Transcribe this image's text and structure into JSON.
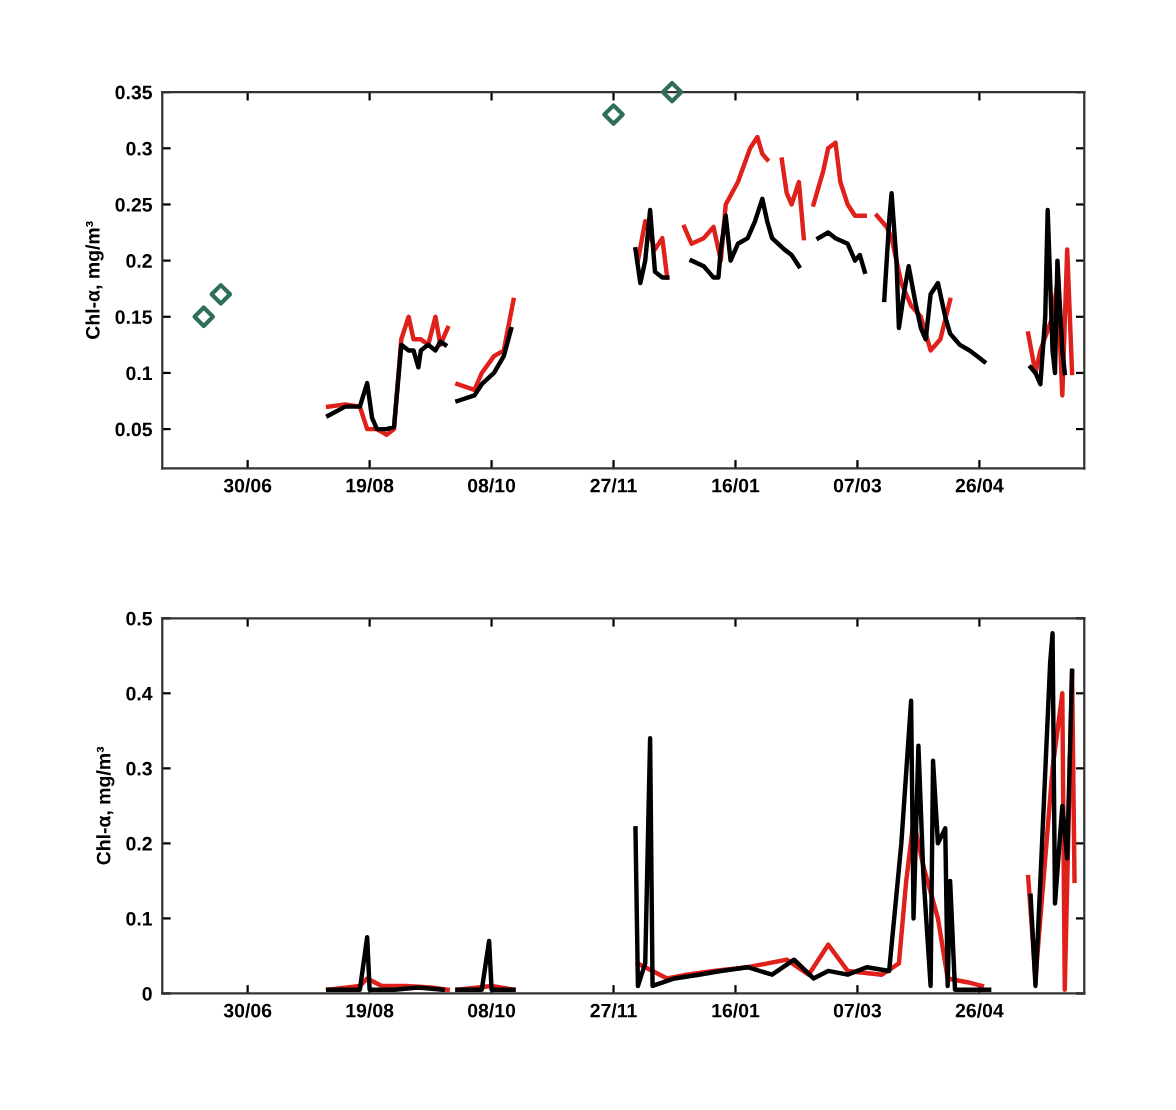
{
  "chart_data": [
    {
      "type": "line",
      "ylabel": "Chl-α, mg/m³",
      "xlim": [
        "2001-05-26",
        "2002-06-08"
      ],
      "ylim": [
        0.015,
        0.35
      ],
      "xticks": [
        {
          "value": "2001-06-30",
          "label": "30/06"
        },
        {
          "value": "2001-08-19",
          "label": "19/08"
        },
        {
          "value": "2001-10-08",
          "label": "08/10"
        },
        {
          "value": "2001-11-27",
          "label": "27/11"
        },
        {
          "value": "2002-01-16",
          "label": "16/01"
        },
        {
          "value": "2002-03-07",
          "label": "07/03"
        },
        {
          "value": "2002-04-26",
          "label": "26/04"
        }
      ],
      "yticks": [
        0.05,
        0.1,
        0.15,
        0.2,
        0.25,
        0.3,
        0.35
      ],
      "series": [
        {
          "color": "#e0201b",
          "x": [
            "2001-08-02",
            "2001-08-09",
            "2001-08-15",
            "2001-08-18",
            "2001-08-22",
            "2001-08-26",
            "2001-08-29",
            "2001-09-01",
            "2001-09-04",
            "2001-09-06",
            "2001-09-09",
            "2001-09-12",
            "2001-09-15",
            "2001-09-17",
            "2001-09-20",
            "2001-09-22",
            "2001-09-24",
            "2001-10-01",
            "2001-10-04",
            "2001-10-09",
            "2001-10-13",
            "2001-10-17",
            "2001-11-07",
            "2001-12-07",
            "2001-12-10",
            "2001-12-14",
            "2001-12-17",
            "2001-12-19",
            "2001-12-23",
            "2001-12-26",
            "2001-12-29",
            "2002-01-03",
            "2002-01-07",
            "2002-01-10",
            "2002-01-12",
            "2002-01-17",
            "2002-01-22",
            "2002-01-25",
            "2002-01-27",
            "2002-01-29",
            "2002-02-01",
            "2002-02-04",
            "2002-02-06",
            "2002-02-08",
            "2002-02-11",
            "2002-02-13",
            "2002-02-15",
            "2002-02-17",
            "2002-02-21",
            "2002-02-23",
            "2002-02-26",
            "2002-02-28",
            "2002-03-03",
            "2002-03-06",
            "2002-03-10",
            "2002-03-13",
            "2002-03-15",
            "2002-03-19",
            "2002-03-21",
            "2002-03-25",
            "2002-03-29",
            "2002-04-02",
            "2002-04-06",
            "2002-04-10",
            "2002-04-14",
            "2002-04-16",
            "2002-05-16",
            "2002-05-19",
            "2002-05-21",
            "2002-05-26",
            "2002-05-28",
            "2002-05-30",
            "2002-06-01",
            "2002-06-03"
          ],
          "values": [
            0.07,
            0.072,
            0.07,
            0.05,
            0.05,
            0.045,
            0.05,
            0.13,
            0.15,
            0.13,
            0.13,
            0.125,
            0.15,
            0.125,
            0.14,
            null,
            0.09,
            0.085,
            0.1,
            0.115,
            0.12,
            0.165,
            null,
            0.2,
            0.235,
            0.21,
            0.22,
            0.185,
            null,
            0.23,
            0.215,
            0.22,
            0.23,
            0.2,
            0.25,
            0.27,
            0.3,
            0.31,
            0.295,
            0.29,
            null,
            0.29,
            0.26,
            0.25,
            0.27,
            0.22,
            null,
            0.25,
            0.28,
            0.3,
            0.305,
            0.27,
            0.25,
            0.24,
            0.24,
            null,
            0.24,
            0.23,
            0.22,
            0.18,
            0.16,
            0.15,
            0.12,
            0.13,
            0.165,
            null,
            0.135,
            0.1,
            0.12,
            0.15,
            0.18,
            0.08,
            0.21,
            0.1
          ]
        },
        {
          "color": "#000000",
          "x": [
            "2001-08-02",
            "2001-08-09",
            "2001-08-15",
            "2001-08-18",
            "2001-08-20",
            "2001-08-22",
            "2001-08-26",
            "2001-08-29",
            "2001-09-01",
            "2001-09-04",
            "2001-09-06",
            "2001-09-08",
            "2001-09-09",
            "2001-09-12",
            "2001-09-15",
            "2001-09-17",
            "2001-09-19",
            "2001-09-22",
            "2001-09-24",
            "2001-10-01",
            "2001-10-04",
            "2001-10-09",
            "2001-10-13",
            "2001-10-16",
            "2001-11-07",
            "2001-12-06",
            "2001-12-08",
            "2001-12-10",
            "2001-12-12",
            "2001-12-14",
            "2001-12-17",
            "2001-12-19",
            "2001-12-23",
            "2001-12-29",
            "2002-01-03",
            "2002-01-05",
            "2002-01-07",
            "2002-01-09",
            "2002-01-10",
            "2002-01-12",
            "2002-01-14",
            "2002-01-17",
            "2002-01-21",
            "2002-01-24",
            "2002-01-27",
            "2002-01-29",
            "2002-01-31",
            "2002-02-05",
            "2002-02-08",
            "2002-02-11",
            "2002-02-15",
            "2002-02-19",
            "2002-02-23",
            "2002-02-26",
            "2002-03-03",
            "2002-03-06",
            "2002-03-08",
            "2002-03-10",
            "2002-03-14",
            "2002-03-18",
            "2002-03-20",
            "2002-03-21",
            "2002-03-23",
            "2002-03-24",
            "2002-03-26",
            "2002-03-28",
            "2002-03-31",
            "2002-04-02",
            "2002-04-04",
            "2002-04-06",
            "2002-04-09",
            "2002-04-12",
            "2002-04-14",
            "2002-04-16",
            "2002-04-18",
            "2002-04-22",
            "2002-04-25",
            "2002-04-28",
            "2002-05-06",
            "2002-05-17",
            "2002-05-19",
            "2002-05-21",
            "2002-05-23",
            "2002-05-24",
            "2002-05-26",
            "2002-05-27",
            "2002-05-28",
            "2002-05-30",
            "2002-05-31"
          ],
          "values": [
            0.062,
            0.07,
            0.07,
            0.091,
            0.06,
            0.05,
            0.05,
            0.052,
            0.125,
            0.12,
            0.12,
            0.105,
            0.12,
            0.125,
            0.12,
            0.128,
            0.125,
            null,
            0.075,
            0.08,
            0.09,
            0.1,
            0.115,
            0.139,
            null,
            0.21,
            0.18,
            0.2,
            0.245,
            0.19,
            0.185,
            0.185,
            null,
            0.2,
            0.195,
            0.19,
            0.185,
            0.185,
            0.21,
            0.24,
            0.2,
            0.215,
            0.22,
            0.235,
            0.255,
            0.235,
            0.22,
            0.21,
            0.205,
            0.195,
            null,
            0.22,
            0.225,
            0.22,
            0.215,
            0.2,
            0.205,
            0.19,
            null,
            0.165,
            0.235,
            0.26,
            0.2,
            0.14,
            0.17,
            0.195,
            0.16,
            0.14,
            0.13,
            0.17,
            0.18,
            0.15,
            0.135,
            0.13,
            0.125,
            0.12,
            0.115,
            0.11,
            null,
            0.105,
            0.1,
            0.09,
            0.15,
            0.245,
            0.12,
            0.1,
            0.2,
            0.12,
            0.1
          ]
        },
        {
          "type": "scatter",
          "marker": "diamond",
          "color": "#2f6f5a",
          "x": [
            "2001-06-12",
            "2001-06-19",
            "2001-11-27",
            "2001-12-21"
          ],
          "values": [
            0.15,
            0.17,
            0.33,
            0.35
          ]
        }
      ]
    },
    {
      "type": "line",
      "ylabel": "Chl-α, mg/m³",
      "xlim": [
        "2001-05-26",
        "2002-06-08"
      ],
      "ylim": [
        0,
        0.5
      ],
      "xticks": [
        {
          "value": "2001-06-30",
          "label": "30/06"
        },
        {
          "value": "2001-08-19",
          "label": "19/08"
        },
        {
          "value": "2001-10-08",
          "label": "08/10"
        },
        {
          "value": "2001-11-27",
          "label": "27/11"
        },
        {
          "value": "2002-01-16",
          "label": "16/01"
        },
        {
          "value": "2002-03-07",
          "label": "07/03"
        },
        {
          "value": "2002-04-26",
          "label": "26/04"
        }
      ],
      "yticks": [
        0,
        0.1,
        0.2,
        0.3,
        0.4,
        0.5
      ],
      "series": [
        {
          "color": "#e0201b",
          "x": [
            "2001-08-02",
            "2001-08-15",
            "2001-08-18",
            "2001-08-24",
            "2001-09-03",
            "2001-09-13",
            "2001-09-20",
            "2001-09-22",
            "2001-09-24",
            "2001-10-08",
            "2001-10-17",
            "2001-11-07",
            "2001-12-07",
            "2001-12-19",
            "2001-12-27",
            "2002-01-07",
            "2002-01-21",
            "2002-02-06",
            "2002-02-15",
            "2002-02-23",
            "2002-03-03",
            "2002-03-17",
            "2002-03-24",
            "2002-03-27",
            "2002-03-30",
            "2002-04-03",
            "2002-04-09",
            "2002-04-13",
            "2002-04-21",
            "2002-04-27",
            "2002-05-06",
            "2002-05-16",
            "2002-05-19",
            "2002-05-26",
            "2002-05-30",
            "2002-05-31",
            "2002-06-03",
            "2002-06-04"
          ],
          "values": [
            0.005,
            0.01,
            0.02,
            0.01,
            0.01,
            0.008,
            0.005,
            null,
            0.005,
            0.01,
            0.005,
            null,
            0.04,
            0.02,
            0.025,
            0.03,
            0.035,
            0.045,
            0.025,
            0.065,
            0.03,
            0.025,
            0.04,
            0.15,
            0.23,
            0.17,
            0.1,
            0.02,
            0.015,
            0.01,
            null,
            0.155,
            0.02,
            0.3,
            0.4,
            0.005,
            0.43,
            0.15
          ]
        },
        {
          "color": "#000000",
          "x": [
            "2001-08-02",
            "2001-08-09",
            "2001-08-15",
            "2001-08-18",
            "2001-08-19",
            "2001-08-29",
            "2001-09-08",
            "2001-09-18",
            "2001-09-22",
            "2001-09-24",
            "2001-10-04",
            "2001-10-07",
            "2001-10-08",
            "2001-10-17",
            "2001-11-07",
            "2001-12-06",
            "2001-12-07",
            "2001-12-10",
            "2001-12-12",
            "2001-12-13",
            "2001-12-22",
            "2002-01-01",
            "2002-01-10",
            "2002-01-21",
            "2002-01-31",
            "2002-02-09",
            "2002-02-17",
            "2002-02-23",
            "2002-03-03",
            "2002-03-11",
            "2002-03-20",
            "2002-03-25",
            "2002-03-29",
            "2002-03-30",
            "2002-04-01",
            "2002-04-03",
            "2002-04-06",
            "2002-04-07",
            "2002-04-09",
            "2002-04-12",
            "2002-04-13",
            "2002-04-14",
            "2002-04-16",
            "2002-04-22",
            "2002-04-30",
            "2002-05-06",
            "2002-05-17",
            "2002-05-19",
            "2002-05-21",
            "2002-05-25",
            "2002-05-26",
            "2002-05-27",
            "2002-05-30",
            "2002-06-01",
            "2002-06-03"
          ],
          "values": [
            0.005,
            0.005,
            0.005,
            0.075,
            0.005,
            0.005,
            0.008,
            0.005,
            null,
            0.005,
            0.005,
            0.07,
            0.005,
            0.005,
            null,
            0.22,
            0.01,
            0.04,
            0.34,
            0.01,
            0.02,
            0.025,
            0.03,
            0.035,
            0.025,
            0.045,
            0.02,
            0.03,
            0.025,
            0.035,
            0.03,
            0.2,
            0.39,
            0.1,
            0.33,
            0.16,
            0.01,
            0.31,
            0.2,
            0.22,
            0.01,
            0.15,
            0.005,
            0.005,
            0.005,
            null,
            0.13,
            0.01,
            0.15,
            0.44,
            0.48,
            0.12,
            0.25,
            0.18,
            0.43
          ]
        }
      ]
    }
  ]
}
